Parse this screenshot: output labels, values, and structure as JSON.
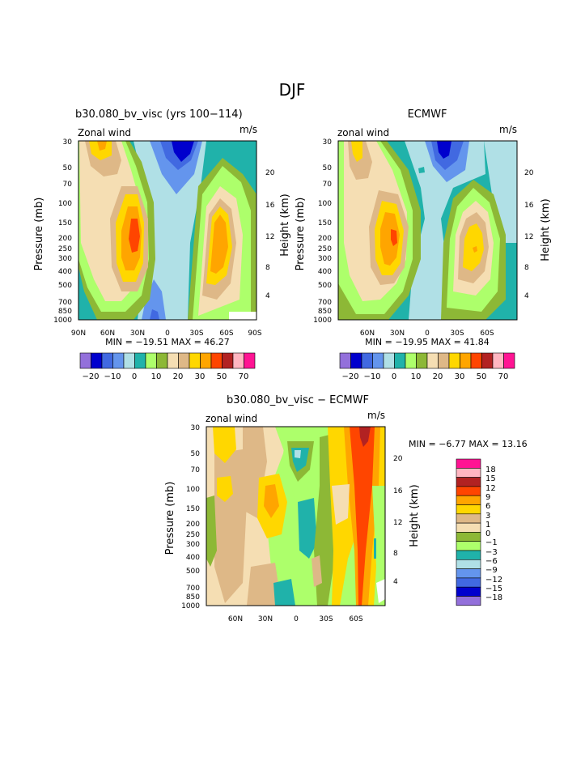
{
  "page_title": "DJF",
  "chart_data": [
    {
      "type": "heatmap",
      "title": "b30.080_bv_visc (yrs 100−114)",
      "left_label": "Zonal wind",
      "right_label": "m/s",
      "xlabel": "",
      "ylabel": "Pressure (mb)",
      "ylabel_right": "Height (km)",
      "x_ticks": [
        "90N",
        "60N",
        "30N",
        "0",
        "30S",
        "60S",
        "90S"
      ],
      "y_ticks": [
        "30",
        "50",
        "70",
        "100",
        "150",
        "200",
        "250",
        "300",
        "400",
        "500",
        "700",
        "850",
        "1000"
      ],
      "y_right_ticks": [
        "20",
        "16",
        "12",
        "8",
        "4"
      ],
      "min_max_text": "MIN = −19.51   MAX =   46.27",
      "min": -19.51,
      "max": 46.27,
      "colorbar_labels": [
        "−20",
        "−10",
        "0",
        "10",
        "20",
        "30",
        "50",
        "70"
      ],
      "colorbar_colors": [
        "#9370db",
        "#0000cd",
        "#4169e1",
        "#6495ed",
        "#b0e0e6",
        "#20b2aa",
        "#adff6b",
        "#8db836",
        "#f5deb3",
        "#deb887",
        "#ffd700",
        "#ffa500",
        "#ff4500",
        "#b22222",
        "#ffb6c1",
        "#ff1493"
      ]
    },
    {
      "type": "heatmap",
      "title": "ECMWF",
      "left_label": "zonal wind",
      "right_label": "m/s",
      "xlabel": "",
      "ylabel": "Pressure (mb)",
      "ylabel_right": "Height (km)",
      "x_ticks": [
        "60N",
        "30N",
        "0",
        "30S",
        "60S"
      ],
      "y_ticks": [
        "30",
        "50",
        "70",
        "100",
        "150",
        "200",
        "250",
        "300",
        "400",
        "500",
        "700",
        "850",
        "1000"
      ],
      "y_right_ticks": [
        "20",
        "16",
        "12",
        "8",
        "4"
      ],
      "min_max_text": "MIN = −19.95   MAX =   41.84",
      "min": -19.95,
      "max": 41.84,
      "colorbar_labels": [
        "−20",
        "−10",
        "0",
        "10",
        "20",
        "30",
        "50",
        "70"
      ],
      "colorbar_colors": [
        "#9370db",
        "#0000cd",
        "#4169e1",
        "#6495ed",
        "#b0e0e6",
        "#20b2aa",
        "#adff6b",
        "#8db836",
        "#f5deb3",
        "#deb887",
        "#ffd700",
        "#ffa500",
        "#ff4500",
        "#b22222",
        "#ffb6c1",
        "#ff1493"
      ]
    },
    {
      "type": "heatmap",
      "title": "b30.080_bv_visc − ECMWF",
      "left_label": "zonal wind",
      "right_label": "m/s",
      "xlabel": "",
      "ylabel": "Pressure (mb)",
      "ylabel_right": "Height (km)",
      "x_ticks": [
        "60N",
        "30N",
        "0",
        "30S",
        "60S"
      ],
      "y_ticks": [
        "30",
        "50",
        "70",
        "100",
        "150",
        "200",
        "250",
        "300",
        "400",
        "500",
        "700",
        "850",
        "1000"
      ],
      "y_right_ticks": [
        "20",
        "16",
        "12",
        "8",
        "4"
      ],
      "min_max_text": "MIN =   −6.77   MAX =   13.16",
      "min": -6.77,
      "max": 13.16,
      "colorbar_labels": [
        "18",
        "15",
        "12",
        "9",
        "6",
        "3",
        "1",
        "0",
        "−1",
        "−3",
        "−6",
        "−9",
        "−12",
        "−15",
        "−18"
      ],
      "colorbar_colors": [
        "#ff1493",
        "#ffb6c1",
        "#b22222",
        "#ff4500",
        "#ffa500",
        "#ffd700",
        "#deb887",
        "#f5deb3",
        "#8db836",
        "#adff6b",
        "#20b2aa",
        "#b0e0e6",
        "#6495ed",
        "#4169e1",
        "#0000cd",
        "#9370db"
      ]
    }
  ]
}
